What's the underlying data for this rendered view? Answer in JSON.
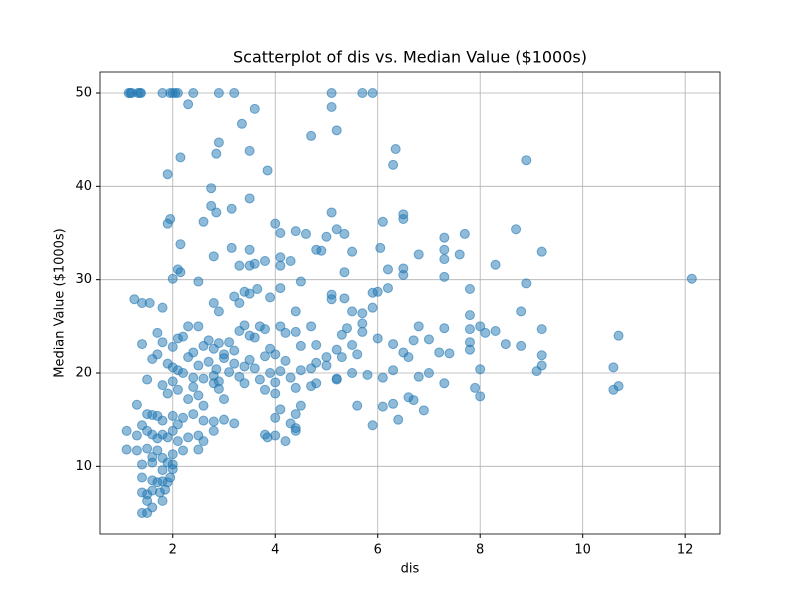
{
  "chart_data": {
    "type": "scatter",
    "title": "Scatterplot of dis vs. Median Value ($1000s)",
    "xlabel": "dis",
    "ylabel": "Median Value ($1000s)",
    "color": "#1f77b4",
    "grid": true,
    "xlim": [
      0.58,
      12.68
    ],
    "ylim": [
      2.75,
      52.25
    ],
    "xticks": [
      2,
      4,
      6,
      8,
      10,
      12
    ],
    "yticks": [
      10,
      20,
      30,
      40,
      50
    ],
    "x": [
      1.14,
      1.17,
      1.2,
      1.32,
      1.36,
      1.38,
      1.8,
      1.95,
      2.0,
      2.05,
      2.1,
      2.4,
      2.9,
      3.2,
      5.1,
      5.7,
      5.9,
      2.3,
      3.6,
      3.35,
      4.7,
      5.1,
      5.2,
      2.9,
      3.5,
      2.15,
      2.85,
      3.85,
      1.9,
      6.35,
      6.3,
      8.9,
      2.75,
      3.5,
      2.75,
      2.85,
      3.15,
      5.1,
      1.9,
      1.95,
      2.6,
      4.0,
      6.1,
      6.5,
      6.5,
      4.1,
      4.4,
      4.6,
      5.2,
      5.35,
      7.3,
      7.7,
      8.7,
      2.15,
      2.8,
      3.15,
      3.5,
      3.5,
      3.8,
      4.1,
      4.3,
      4.8,
      4.9,
      5.0,
      5.5,
      6.05,
      7.3,
      7.3,
      7.6,
      8.3,
      9.2,
      2.1,
      2.15,
      2.0,
      3.3,
      3.6,
      4.1,
      5.35,
      6.2,
      6.5,
      6.5,
      6.8,
      7.3,
      8.9,
      12.13,
      1.25,
      1.4,
      1.55,
      1.8,
      2.5,
      2.8,
      2.9,
      3.2,
      3.4,
      3.3,
      3.5,
      3.65,
      3.9,
      4.1,
      4.5,
      5.1,
      5.1,
      5.35,
      5.9,
      6.0,
      6.2,
      5.9,
      5.7,
      5.5,
      7.8,
      7.8,
      8.8,
      4.4,
      1.4,
      1.7,
      1.8,
      2.0,
      2.1,
      2.2,
      2.3,
      2.5,
      2.4,
      2.6,
      2.7,
      2.8,
      2.9,
      3.0,
      3.1,
      3.2,
      3.3,
      3.4,
      3.5,
      3.6,
      3.7,
      3.8,
      3.9,
      4.0,
      4.1,
      4.2,
      4.4,
      4.5,
      4.7,
      4.8,
      5.0,
      5.2,
      5.3,
      5.4,
      5.5,
      5.3,
      5.7,
      5.7,
      6.0,
      6.3,
      6.5,
      6.7,
      6.8,
      7.0,
      7.2,
      7.3,
      7.8,
      7.8,
      7.8,
      8.1,
      8.0,
      8.3,
      8.5,
      8.8,
      9.2,
      9.2,
      9.1,
      10.7,
      1.6,
      1.7,
      1.9,
      2.0,
      2.1,
      2.2,
      2.3,
      2.4,
      2.5,
      2.6,
      2.7,
      2.8,
      2.85,
      2.9,
      3.0,
      3.1,
      3.2,
      3.3,
      3.4,
      3.5,
      3.6,
      3.7,
      3.8,
      3.9,
      4.0,
      4.1,
      4.2,
      4.3,
      4.5,
      4.7,
      4.8,
      5.0,
      5.2,
      5.5,
      5.6,
      5.8,
      6.1,
      6.3,
      6.6,
      6.8,
      7.0,
      7.3,
      7.4,
      7.9,
      8.0,
      9.2,
      10.6,
      10.6,
      10.7,
      1.5,
      1.8,
      1.9,
      2.0,
      2.1,
      2.3,
      2.4,
      2.5,
      2.6,
      2.8,
      2.9,
      3.0,
      3.4,
      3.8,
      4.0,
      4.4,
      4.7,
      4.8,
      5.2,
      5.6,
      6.1,
      6.3,
      6.6,
      6.7,
      6.9,
      8.0,
      4.1,
      4.5,
      1.3,
      1.5,
      1.6,
      1.7,
      1.8,
      2.0,
      2.1,
      2.2,
      2.4,
      2.6,
      2.8,
      3.0,
      3.2,
      4.0,
      4.3,
      4.4,
      4.4,
      5.9,
      6.4,
      1.1,
      1.3,
      1.4,
      1.5,
      1.6,
      1.7,
      1.8,
      1.9,
      2.0,
      2.1,
      2.3,
      2.5,
      2.6,
      2.8,
      3.8,
      3.85,
      4.0,
      4.2,
      4.4,
      1.1,
      1.3,
      1.5,
      1.6,
      1.7,
      1.8,
      1.9,
      2.0,
      2.2,
      2.5,
      1.4,
      1.6,
      1.8,
      2.0,
      2.0,
      1.4,
      1.6,
      1.7,
      1.8,
      1.85,
      1.9,
      1.95,
      1.4,
      1.5,
      1.6,
      1.75,
      1.8,
      1.5,
      1.6,
      1.4,
      1.5
    ],
    "values": [
      50,
      50,
      50,
      50,
      50,
      50,
      50,
      50,
      50,
      50,
      50,
      50,
      50,
      50,
      50,
      50,
      50,
      48.8,
      48.3,
      46.7,
      45.4,
      48.5,
      46,
      44.7,
      43.8,
      43.1,
      43.5,
      41.7,
      41.3,
      44,
      42.3,
      42.8,
      39.8,
      38.7,
      37.9,
      37.2,
      37.6,
      37.2,
      36,
      36.5,
      36.2,
      36,
      36.2,
      37,
      36.5,
      35,
      35.2,
      34.9,
      35.4,
      34.9,
      34.5,
      34.9,
      35.4,
      33.8,
      32.5,
      33.4,
      33.2,
      31.5,
      32,
      32.4,
      32,
      33.2,
      33.1,
      34.6,
      33,
      33.4,
      33.2,
      32.2,
      32.7,
      31.6,
      33,
      31.1,
      30.8,
      30.1,
      31.5,
      31.7,
      31.5,
      30.8,
      31.1,
      31.2,
      30.5,
      32.7,
      30.3,
      29.6,
      30.1,
      27.9,
      27.5,
      27.5,
      27,
      29.8,
      27.5,
      26.6,
      28.2,
      28.7,
      27.5,
      28.5,
      29,
      28.1,
      29.1,
      29.8,
      28.4,
      27.9,
      28,
      28.6,
      28.7,
      29.1,
      27,
      26.4,
      26.6,
      29,
      26.2,
      26.6,
      26.6,
      23.1,
      24.3,
      23.3,
      22.8,
      23.7,
      23.9,
      25,
      25,
      22.2,
      22.9,
      23.5,
      22.6,
      23.2,
      22,
      23.3,
      22.4,
      24.5,
      25.1,
      24,
      23.8,
      25,
      24.7,
      22.6,
      22,
      25,
      24.3,
      24.4,
      22.9,
      25,
      23,
      21.7,
      22.5,
      24.1,
      24.8,
      23,
      21.7,
      24.4,
      25.3,
      23.7,
      23.1,
      22.2,
      23.5,
      25,
      23.6,
      22.2,
      24.8,
      24.7,
      22.5,
      23.3,
      24.3,
      25,
      24.5,
      23.1,
      22.9,
      24.7,
      21.9,
      20.2,
      24,
      21.5,
      22,
      21,
      20.6,
      20.3,
      20,
      21.7,
      19.5,
      20.8,
      19.4,
      21.2,
      19.7,
      20.4,
      19.1,
      21.6,
      20.1,
      21,
      19.6,
      20.7,
      21.4,
      20.5,
      19.3,
      21.8,
      20,
      19,
      20.2,
      21.3,
      19.5,
      20.3,
      20.5,
      21.1,
      20.8,
      19.3,
      20,
      22,
      19.8,
      19.5,
      20.3,
      21.7,
      19.6,
      20,
      18.9,
      22.1,
      18.4,
      20.4,
      20.8,
      20.6,
      18.2,
      18.6,
      19.3,
      18.7,
      17.8,
      19.1,
      18.2,
      17.2,
      18.5,
      17.6,
      16.5,
      18.9,
      18.3,
      17.2,
      18.9,
      18.2,
      17.8,
      18.4,
      18.6,
      18.9,
      19.4,
      16.5,
      16.4,
      16.7,
      17.4,
      17.1,
      16,
      17.5,
      16.1,
      16.5,
      16.6,
      15.6,
      15.5,
      15.4,
      14.9,
      15.4,
      14.5,
      15.2,
      15.6,
      14.9,
      14.8,
      15,
      14.6,
      15.2,
      14.6,
      15.6,
      14.1,
      14.4,
      15,
      13.8,
      13.3,
      14.4,
      13.8,
      13.4,
      13,
      13.4,
      13.1,
      13.8,
      12.7,
      13.1,
      13.3,
      12.7,
      13.8,
      13.4,
      13.1,
      13.3,
      12.7,
      13.8,
      11.8,
      11.7,
      11.9,
      11,
      11.7,
      10.9,
      10.4,
      11.3,
      11.7,
      11.8,
      10.2,
      10.4,
      9.6,
      9.7,
      10.2,
      8.8,
      8.5,
      8.3,
      8.4,
      7.5,
      8.3,
      8.8,
      7.2,
      7,
      7.4,
      7.2,
      6.3,
      6.3,
      5.6,
      5,
      5
    ]
  }
}
